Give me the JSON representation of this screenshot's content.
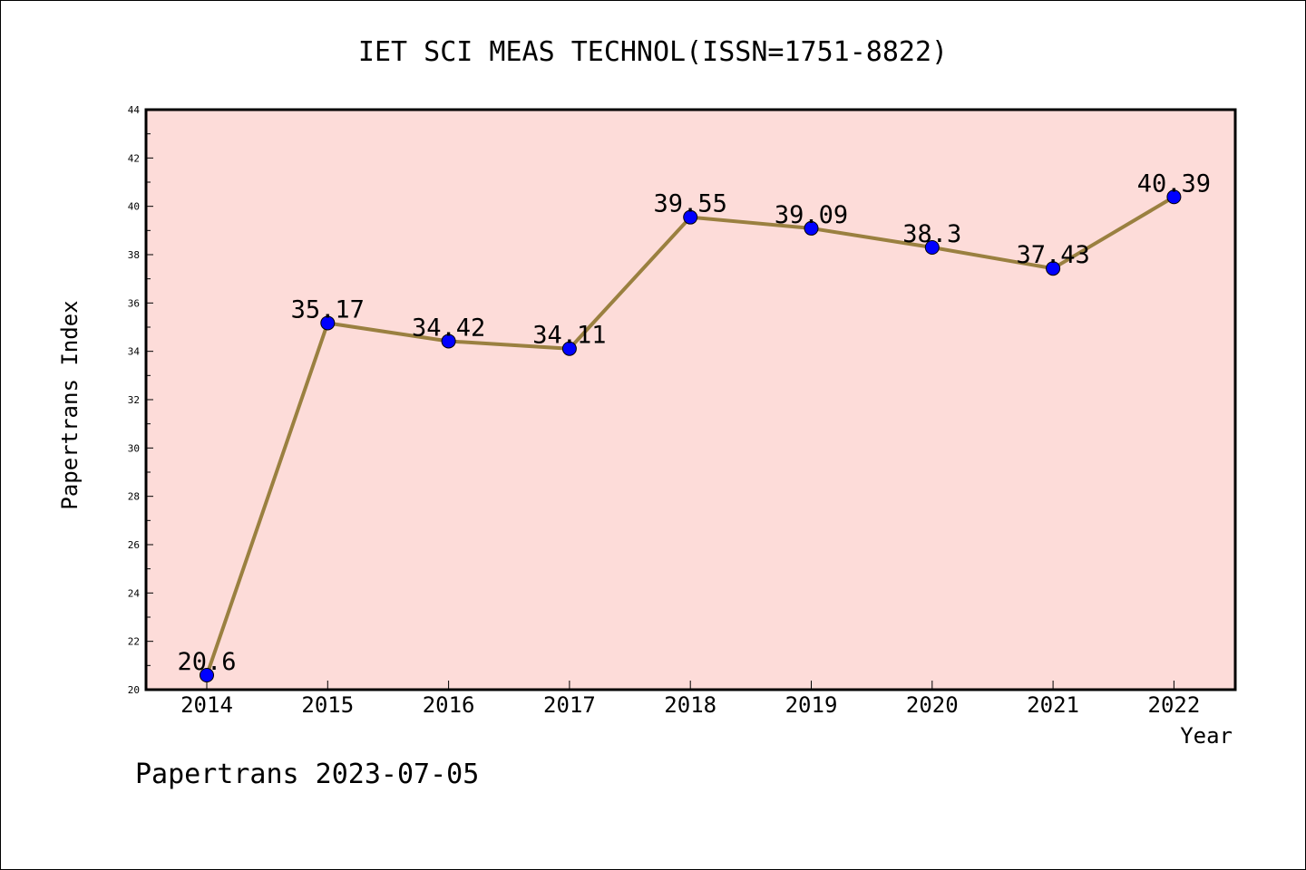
{
  "chart_data": {
    "type": "line",
    "title": "IET SCI MEAS TECHNOL(ISSN=1751-8822)",
    "xlabel": "Year",
    "ylabel": "Papertrans Index",
    "categories": [
      "2014",
      "2015",
      "2016",
      "2017",
      "2018",
      "2019",
      "2020",
      "2021",
      "2022"
    ],
    "series": [
      {
        "values": [
          20.6,
          35.17,
          34.42,
          34.11,
          39.55,
          39.09,
          38.3,
          37.43,
          40.39
        ],
        "labels": [
          "20.6",
          "35.17",
          "34.42",
          "34.11",
          "39.55",
          "39.09",
          "38.3",
          "37.43",
          "40.39"
        ],
        "line_color": "#9a8040",
        "marker_color": "#0000ff"
      }
    ],
    "ylim": [
      20,
      44
    ],
    "yticks": [
      "20",
      "22",
      "24",
      "26",
      "28",
      "30",
      "32",
      "34",
      "36",
      "38",
      "40",
      "42",
      "44"
    ],
    "plot_background": "#fddcd9",
    "grid": false,
    "legend": "none"
  },
  "footer": {
    "text": "Papertrans 2023-07-05"
  }
}
